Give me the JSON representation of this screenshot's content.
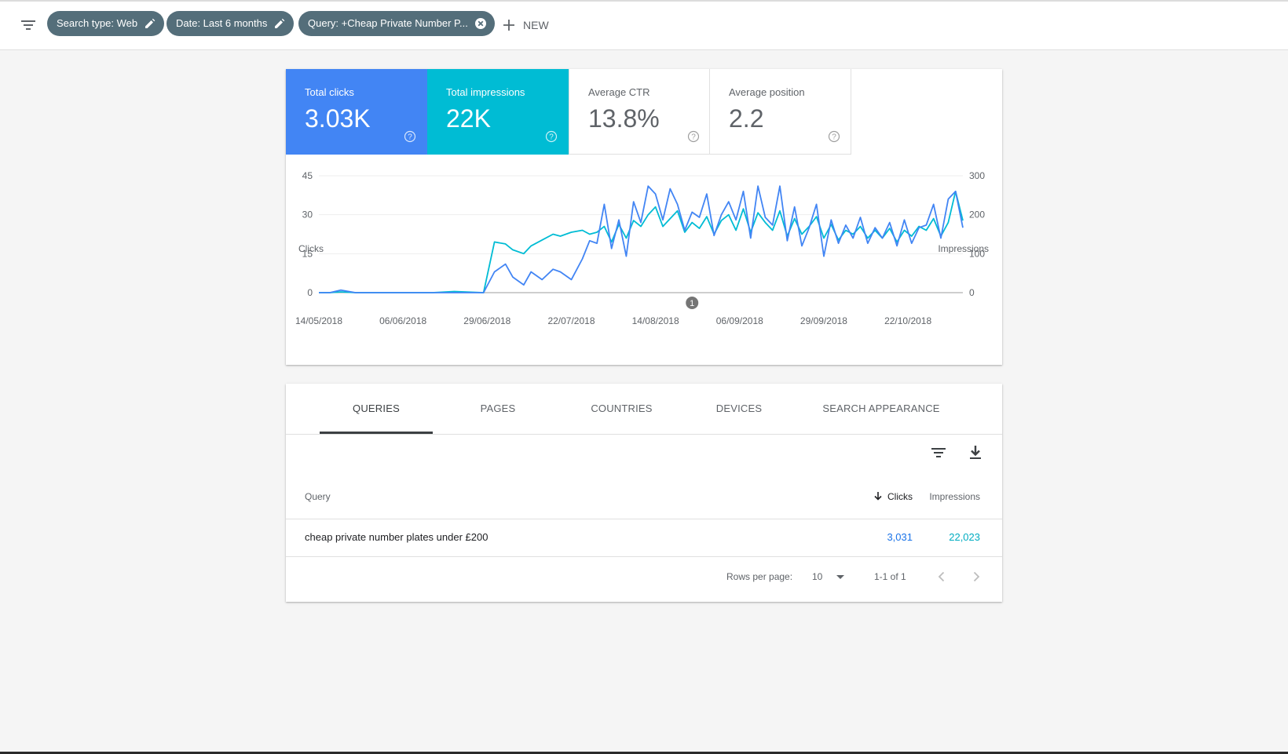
{
  "filters": {
    "chips": [
      {
        "label": "Search type: Web",
        "action_icon": "edit-icon"
      },
      {
        "label": "Date: Last 6 months",
        "action_icon": "edit-icon"
      },
      {
        "label": "Query: +Cheap Private Number P...",
        "action_icon": "close-circle-icon"
      }
    ],
    "new_label": "NEW"
  },
  "metrics": [
    {
      "label": "Total clicks",
      "value": "3.03K",
      "color": "#4285f4"
    },
    {
      "label": "Total impressions",
      "value": "22K",
      "color": "#00bcd4"
    },
    {
      "label": "Average CTR",
      "value": "13.8%"
    },
    {
      "label": "Average position",
      "value": "2.2"
    }
  ],
  "chart_data": {
    "type": "line",
    "ylabel": "Clicks",
    "y2label": "Impressions",
    "ylim": [
      0,
      45
    ],
    "y2lim": [
      0,
      300
    ],
    "yticks": [
      "45",
      "30",
      "15",
      "0"
    ],
    "y2ticks": [
      "300",
      "200",
      "100",
      "0"
    ],
    "x_range": [
      "14/05/2018",
      "06/11/2018"
    ],
    "xticks": [
      "14/05/2018",
      "06/06/2018",
      "29/06/2018",
      "22/07/2018",
      "14/08/2018",
      "06/09/2018",
      "29/09/2018",
      "22/10/2018"
    ],
    "annotation": {
      "label": "1",
      "date": "24/08/2018"
    },
    "grid": true,
    "series": [
      {
        "name": "Clicks",
        "axis": "left",
        "color": "#4285f4",
        "x": [
          "14/05/2018",
          "17/05/2018",
          "20/05/2018",
          "24/05/2018",
          "28/05/2018",
          "02/06/2018",
          "08/06/2018",
          "14/06/2018",
          "20/06/2018",
          "28/06/2018",
          "01/07/2018",
          "04/07/2018",
          "06/07/2018",
          "09/07/2018",
          "11/07/2018",
          "14/07/2018",
          "17/07/2018",
          "19/07/2018",
          "22/07/2018",
          "25/07/2018",
          "27/07/2018",
          "29/07/2018",
          "31/07/2018",
          "02/08/2018",
          "04/08/2018",
          "06/08/2018",
          "08/08/2018",
          "10/08/2018",
          "12/08/2018",
          "14/08/2018",
          "16/08/2018",
          "18/08/2018",
          "20/08/2018",
          "22/08/2018",
          "24/08/2018",
          "26/08/2018",
          "28/08/2018",
          "30/08/2018",
          "01/09/2018",
          "03/09/2018",
          "05/09/2018",
          "07/09/2018",
          "09/09/2018",
          "11/09/2018",
          "13/09/2018",
          "15/09/2018",
          "17/09/2018",
          "19/09/2018",
          "21/09/2018",
          "23/09/2018",
          "25/09/2018",
          "27/09/2018",
          "29/09/2018",
          "01/10/2018",
          "03/10/2018",
          "05/10/2018",
          "07/10/2018",
          "09/10/2018",
          "11/10/2018",
          "13/10/2018",
          "15/10/2018",
          "17/10/2018",
          "19/10/2018",
          "21/10/2018",
          "23/10/2018",
          "25/10/2018",
          "27/10/2018",
          "29/10/2018",
          "31/10/2018",
          "02/11/2018",
          "04/11/2018",
          "06/11/2018"
        ],
        "values": [
          0,
          0,
          1,
          0,
          0,
          0,
          0,
          0,
          0,
          0,
          8,
          11,
          6,
          3,
          8,
          5,
          9,
          8,
          5,
          13,
          20,
          19,
          34,
          17,
          28,
          14,
          35,
          27,
          41,
          38,
          28,
          40,
          34,
          24,
          31,
          29,
          38,
          22,
          30,
          35,
          28,
          39,
          21,
          41,
          29,
          26,
          41,
          20,
          33,
          18,
          25,
          34,
          14,
          28,
          19,
          26,
          21,
          29,
          19,
          25,
          21,
          27,
          18,
          28,
          19,
          25,
          26,
          34,
          21,
          36,
          39,
          25
        ]
      },
      {
        "name": "Impressions",
        "axis": "right",
        "color": "#00bcd4",
        "x": [
          "14/05/2018",
          "17/05/2018",
          "20/05/2018",
          "24/05/2018",
          "28/05/2018",
          "02/06/2018",
          "08/06/2018",
          "14/06/2018",
          "20/06/2018",
          "28/06/2018",
          "01/07/2018",
          "04/07/2018",
          "06/07/2018",
          "09/07/2018",
          "11/07/2018",
          "14/07/2018",
          "17/07/2018",
          "19/07/2018",
          "22/07/2018",
          "25/07/2018",
          "27/07/2018",
          "29/07/2018",
          "31/07/2018",
          "02/08/2018",
          "04/08/2018",
          "06/08/2018",
          "08/08/2018",
          "10/08/2018",
          "12/08/2018",
          "14/08/2018",
          "16/08/2018",
          "18/08/2018",
          "20/08/2018",
          "22/08/2018",
          "24/08/2018",
          "26/08/2018",
          "28/08/2018",
          "30/08/2018",
          "01/09/2018",
          "03/09/2018",
          "05/09/2018",
          "07/09/2018",
          "09/09/2018",
          "11/09/2018",
          "13/09/2018",
          "15/09/2018",
          "17/09/2018",
          "19/09/2018",
          "21/09/2018",
          "23/09/2018",
          "25/09/2018",
          "27/09/2018",
          "29/09/2018",
          "01/10/2018",
          "03/10/2018",
          "05/10/2018",
          "07/10/2018",
          "09/10/2018",
          "11/10/2018",
          "13/10/2018",
          "15/10/2018",
          "17/10/2018",
          "19/10/2018",
          "21/10/2018",
          "23/10/2018",
          "25/10/2018",
          "27/10/2018",
          "29/10/2018",
          "31/10/2018",
          "02/11/2018",
          "04/11/2018",
          "06/11/2018"
        ],
        "values": [
          0,
          0,
          2,
          0,
          0,
          0,
          0,
          0,
          3,
          0,
          130,
          125,
          110,
          100,
          120,
          135,
          150,
          145,
          155,
          160,
          150,
          155,
          170,
          130,
          175,
          140,
          185,
          170,
          200,
          220,
          170,
          190,
          210,
          155,
          180,
          165,
          195,
          150,
          185,
          200,
          160,
          215,
          155,
          205,
          180,
          160,
          210,
          145,
          190,
          150,
          170,
          195,
          140,
          175,
          135,
          160,
          150,
          170,
          140,
          160,
          140,
          165,
          130,
          160,
          145,
          170,
          160,
          190,
          145,
          180,
          260,
          185
        ]
      }
    ]
  },
  "tabs": [
    "QUERIES",
    "PAGES",
    "COUNTRIES",
    "DEVICES",
    "SEARCH APPEARANCE"
  ],
  "active_tab": "QUERIES",
  "table": {
    "columns": {
      "query": "Query",
      "clicks": "Clicks",
      "impressions": "Impressions"
    },
    "sort_column": "clicks",
    "rows": [
      {
        "query": "cheap private number plates under £200",
        "clicks": "3,031",
        "impressions": "22,023"
      }
    ]
  },
  "pagination": {
    "rows_per_page_label": "Rows per page:",
    "rows_per_page": "10",
    "range_label": "1-1 of 1"
  }
}
